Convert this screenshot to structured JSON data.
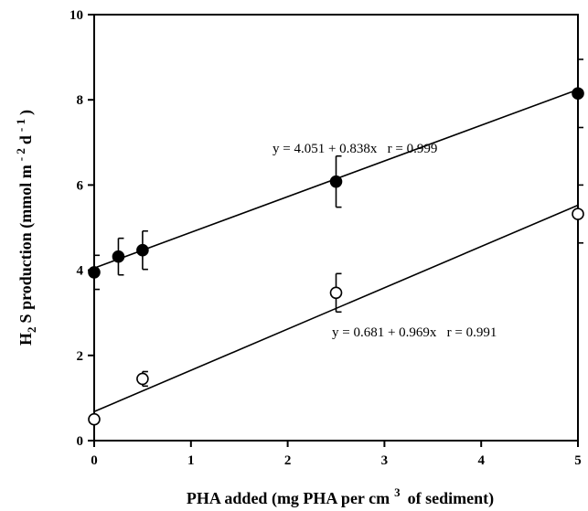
{
  "chart_data": {
    "type": "scatter",
    "title": "",
    "xlabel": "PHA added (mg PHA per cm 3 of sediment)",
    "xlabel_parts": {
      "main": "PHA added (mg PHA per cm",
      "sup": "3",
      "tail": "of sediment)"
    },
    "ylabel": "H2 S production (mmol m - 2 d - 1 )",
    "ylabel_parts": {
      "h": "H",
      "sub": "2",
      "rest": "S production (mmol m",
      "sup1": "- 2",
      "mid": "d",
      "sup2": "- 1",
      "end": ")"
    },
    "xlim": [
      0,
      5
    ],
    "ylim": [
      0,
      10
    ],
    "xticks": [
      "0",
      "1",
      "2",
      "3",
      "4",
      "5"
    ],
    "yticks": [
      "0",
      "2",
      "4",
      "6",
      "8",
      "10"
    ],
    "grid": false,
    "series": [
      {
        "marker": "filled-circle",
        "x": [
          0,
          0.25,
          0.5,
          2.5,
          5
        ],
        "y": [
          3.95,
          4.32,
          4.47,
          6.08,
          8.15
        ],
        "err": [
          0.4,
          0.43,
          0.45,
          0.6,
          0.8
        ],
        "fit": {
          "intercept": 4.051,
          "slope": 0.838
        },
        "annotation": "y = 4.051 + 0.838x   r = 0.999"
      },
      {
        "marker": "open-circle",
        "x": [
          0,
          0.5,
          2.5,
          5
        ],
        "y": [
          0.5,
          1.45,
          3.47,
          5.32
        ],
        "err": [
          0,
          0.17,
          0.45,
          0.68
        ],
        "fit": {
          "intercept": 0.681,
          "slope": 0.969
        },
        "annotation": "y = 0.681 + 0.969x   r = 0.991"
      }
    ]
  }
}
